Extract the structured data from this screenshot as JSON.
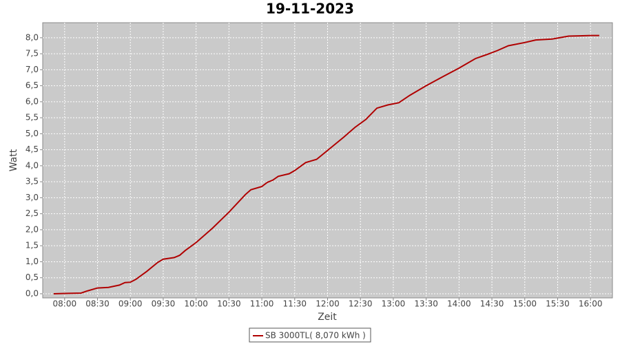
{
  "chart_data": {
    "type": "line",
    "title": "19-11-2023",
    "xlabel": "Zeit",
    "ylabel": "Watt",
    "x": [
      "07:50",
      "08:00",
      "08:15",
      "08:20",
      "08:30",
      "08:40",
      "08:50",
      "08:55",
      "09:00",
      "09:05",
      "09:15",
      "09:25",
      "09:30",
      "09:40",
      "09:45",
      "09:50",
      "10:00",
      "10:15",
      "10:30",
      "10:45",
      "10:50",
      "11:00",
      "11:05",
      "11:10",
      "11:15",
      "11:25",
      "11:30",
      "11:40",
      "11:45",
      "11:50",
      "12:00",
      "12:15",
      "12:25",
      "12:35",
      "12:45",
      "12:55",
      "13:05",
      "13:15",
      "13:30",
      "13:45",
      "14:00",
      "14:15",
      "14:25",
      "14:35",
      "14:45",
      "15:00",
      "15:10",
      "15:25",
      "15:40",
      "15:50",
      "16:00",
      "16:08"
    ],
    "series": [
      {
        "name": "SB 3000TL( 8,070 kWh )",
        "color": "#b00000",
        "values": [
          0.0,
          0.01,
          0.02,
          0.08,
          0.18,
          0.2,
          0.27,
          0.35,
          0.36,
          0.45,
          0.7,
          0.98,
          1.08,
          1.13,
          1.2,
          1.35,
          1.6,
          2.05,
          2.55,
          3.1,
          3.25,
          3.35,
          3.48,
          3.55,
          3.67,
          3.75,
          3.85,
          4.1,
          4.15,
          4.2,
          4.48,
          4.9,
          5.2,
          5.45,
          5.8,
          5.9,
          5.97,
          6.2,
          6.5,
          6.78,
          7.05,
          7.35,
          7.47,
          7.6,
          7.75,
          7.85,
          7.93,
          7.96,
          8.05,
          8.06,
          8.07,
          8.07
        ]
      }
    ],
    "xlim": [
      "07:40",
      "16:20"
    ],
    "xticks": [
      "08:00",
      "08:30",
      "09:00",
      "09:30",
      "10:00",
      "10:30",
      "11:00",
      "11:30",
      "12:00",
      "12:30",
      "13:00",
      "13:30",
      "14:00",
      "14:30",
      "15:00",
      "15:30",
      "16:00"
    ],
    "ylim": [
      -0.13,
      8.47
    ],
    "yticks": [
      {
        "value": 0,
        "label": "0,0"
      },
      {
        "value": 0.5,
        "label": "0,5"
      },
      {
        "value": 1,
        "label": "1,0"
      },
      {
        "value": 1.5,
        "label": "1,5"
      },
      {
        "value": 2,
        "label": "2,0"
      },
      {
        "value": 2.5,
        "label": "2,5"
      },
      {
        "value": 3,
        "label": "3,0"
      },
      {
        "value": 3.5,
        "label": "3,5"
      },
      {
        "value": 4,
        "label": "4,0"
      },
      {
        "value": 4.5,
        "label": "4,5"
      },
      {
        "value": 5,
        "label": "5,0"
      },
      {
        "value": 5.5,
        "label": "5,5"
      },
      {
        "value": 6,
        "label": "6,0"
      },
      {
        "value": 6.5,
        "label": "6,5"
      },
      {
        "value": 7,
        "label": "7,0"
      },
      {
        "value": 7.5,
        "label": "7,5"
      },
      {
        "value": 8,
        "label": "8,0"
      }
    ],
    "grid": true
  }
}
